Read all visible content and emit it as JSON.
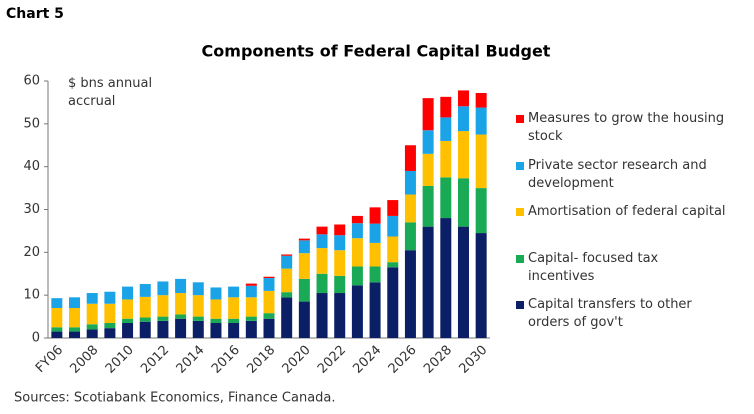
{
  "chart_data": {
    "type": "stacked-bar",
    "label": "Chart 5",
    "title": "Components of Federal Capital Budget",
    "y_label": "$ bns annual accrual",
    "source": "Sources: Scotiabank Economics, Finance Canada.",
    "categories": [
      "FY06",
      null,
      "2008",
      null,
      "2010",
      null,
      "2012",
      null,
      "2014",
      null,
      "2016",
      null,
      "2018",
      null,
      "2020",
      null,
      "2022",
      null,
      "2024",
      null,
      "2026",
      null,
      "2028",
      null,
      "2030"
    ],
    "series": [
      {
        "name": "Capital transfers to other orders of gov't",
        "color": "#0b1f66",
        "values": [
          1.5,
          1.5,
          2,
          2.3,
          3.5,
          3.8,
          4,
          4.5,
          4,
          3.5,
          3.5,
          4,
          4.5,
          9.5,
          8.5,
          10.5,
          10.5,
          12.3,
          13,
          16.5,
          20.5,
          26,
          28,
          26,
          24.5
        ]
      },
      {
        "name": "Capital- focused tax incentives",
        "color": "#1aaa55",
        "values": [
          1,
          1,
          1.2,
          1.2,
          1,
          1,
          1,
          1,
          1,
          1,
          1,
          1,
          1.3,
          1.2,
          5.3,
          4.5,
          4,
          4.4,
          3.7,
          1.2,
          6.5,
          9.5,
          9.5,
          11.3,
          10.5
        ]
      },
      {
        "name": "Amortisation of federal capital",
        "color": "#ffc000",
        "values": [
          4.5,
          4.5,
          4.8,
          4.5,
          4.5,
          4.8,
          5,
          5,
          5,
          4.5,
          5,
          4.5,
          5.2,
          5.5,
          6,
          6,
          6,
          6.6,
          5.5,
          6,
          6.5,
          7.5,
          8.5,
          11,
          12.5
        ]
      },
      {
        "name": "Private sector research and development",
        "color": "#1ba3e8",
        "values": [
          2.3,
          2.5,
          2.5,
          2.8,
          3,
          3,
          3.2,
          3.3,
          3,
          2.8,
          2.5,
          2.7,
          3,
          3,
          3,
          3.2,
          3.5,
          3.5,
          4.5,
          4.8,
          5.5,
          5.5,
          5.5,
          5.8,
          6.3
        ]
      },
      {
        "name": "Measures to grow the housing stock",
        "color": "#ff0000",
        "values": [
          0,
          0,
          0,
          0,
          0,
          0,
          0,
          0,
          0,
          0,
          0,
          0.5,
          0.3,
          0.3,
          0.4,
          1.8,
          2.5,
          1.7,
          3.8,
          3.7,
          6,
          7.5,
          4.8,
          3.7,
          3.4
        ]
      }
    ],
    "ylim": [
      0,
      60
    ],
    "yticks": [
      0,
      10,
      20,
      30,
      40,
      50,
      60
    ],
    "grid": false
  }
}
